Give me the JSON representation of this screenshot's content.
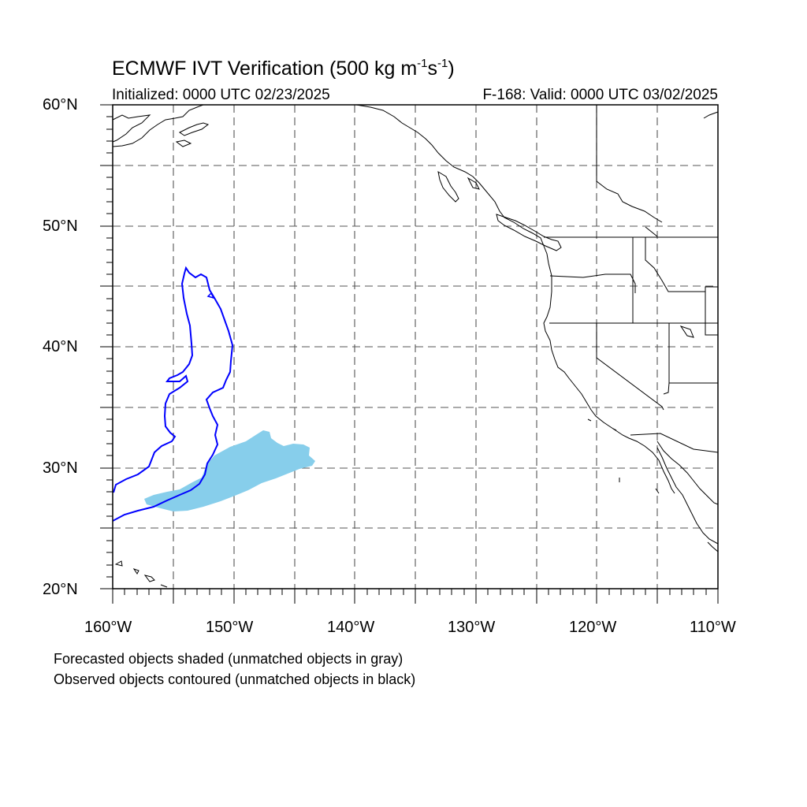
{
  "map": {
    "title_main": "ECMWF IVT Verification (500 kg m",
    "title_sup1": "-1",
    "title_mid": "s",
    "title_sup2": "-1",
    "title_end": ")",
    "initialized": "Initialized: 0000 UTC 02/23/2025",
    "valid": "F-168: Valid: 0000 UTC 03/02/2025",
    "lat_labels": [
      "60°N",
      "50°N",
      "40°N",
      "30°N",
      "20°N"
    ],
    "lon_labels": [
      "160°W",
      "150°W",
      "140°W",
      "130°W",
      "120°W",
      "110°W"
    ],
    "extent": {
      "lon_min": -160,
      "lon_max": -110,
      "lat_min": 20,
      "lat_max": 60
    },
    "forecast_fill_color": "#87ceeb",
    "observed_contour_color": "#0000ff",
    "coastline_color": "#000000",
    "grid_style": "dashed"
  },
  "legend": {
    "line1": "Forecasted objects shaded (unmatched objects in gray)",
    "line2": "Observed objects contoured (unmatched objects in black)"
  }
}
